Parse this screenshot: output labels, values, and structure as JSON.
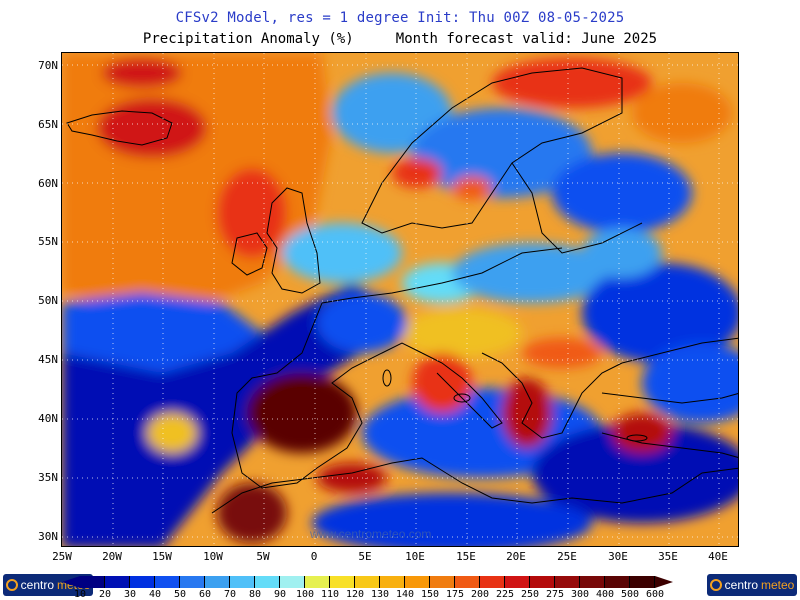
{
  "title_line1": "CFSv2 Model, res = 1 degree    Init: Thu 00Z 08-05-2025",
  "title_line2": "Precipitation Anomaly (%)     Month forecast valid: June 2025",
  "watermark": "www.centrometeo.com",
  "logo": {
    "text_left": "centro",
    "text_right": "meteo"
  },
  "axes": {
    "lon_labels": [
      "25W",
      "20W",
      "15W",
      "10W",
      "5W",
      "0",
      "5E",
      "10E",
      "15E",
      "20E",
      "25E",
      "30E",
      "35E",
      "40E"
    ],
    "lat_labels": [
      "70N",
      "65N",
      "60N",
      "55N",
      "50N",
      "45N",
      "40N",
      "35N",
      "30N"
    ],
    "lon_range": [
      -25,
      42
    ],
    "lat_range": [
      29,
      71
    ]
  },
  "legend": {
    "levels": [
      "10",
      "20",
      "30",
      "40",
      "50",
      "60",
      "70",
      "80",
      "90",
      "100",
      "110",
      "120",
      "130",
      "140",
      "150",
      "175",
      "200",
      "225",
      "250",
      "275",
      "300",
      "400",
      "500",
      "600"
    ],
    "colors": [
      "#000082",
      "#0010b4",
      "#0030e0",
      "#1050f0",
      "#2878f0",
      "#3ca0f0",
      "#50c0f8",
      "#64dcf8",
      "#a0f0f0",
      "#e6f050",
      "#f8e028",
      "#f8c818",
      "#f8b010",
      "#f89808",
      "#f07c10",
      "#f05a14",
      "#e83214",
      "#d01414",
      "#b40a0a",
      "#960a0a",
      "#780808",
      "#5a0404",
      "#3c0000"
    ]
  },
  "map_fields": {
    "description_colors": {
      "wet_extreme": "#3c0000",
      "wet_high": "#d01414",
      "wet_moderate": "#f07c10",
      "near_normal": "#f0c020",
      "dry_moderate": "#2878f0",
      "dry_extreme": "#0010b4"
    }
  }
}
